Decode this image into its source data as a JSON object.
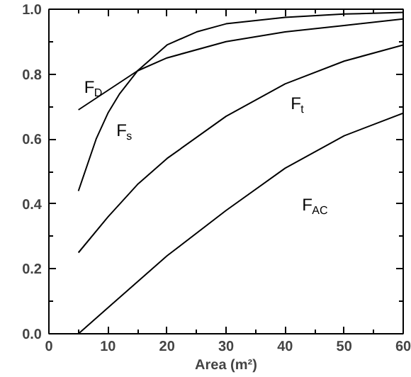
{
  "chart_data": {
    "type": "line",
    "xlabel": "Area (m²)",
    "series": [
      {
        "name": "F$_{D}$",
        "color": "#000000",
        "x": [
          5,
          10,
          15,
          20,
          30,
          40,
          50,
          60
        ],
        "values": [
          0.69,
          0.75,
          0.81,
          0.85,
          0.9,
          0.93,
          0.95,
          0.97
        ]
      },
      {
        "name": "F$_{s}$",
        "color": "#000000",
        "x": [
          5,
          8,
          10,
          12,
          15,
          20,
          25,
          30,
          40,
          50,
          60
        ],
        "values": [
          0.44,
          0.6,
          0.68,
          0.74,
          0.81,
          0.89,
          0.93,
          0.955,
          0.975,
          0.985,
          0.99
        ]
      },
      {
        "name": "F$_{t}$",
        "color": "#000000",
        "x": [
          5,
          10,
          15,
          20,
          30,
          40,
          50,
          60
        ],
        "values": [
          0.25,
          0.36,
          0.46,
          0.54,
          0.67,
          0.77,
          0.84,
          0.89
        ]
      },
      {
        "name": "F$_{AC}$",
        "color": "#000000",
        "x": [
          5,
          10,
          20,
          30,
          40,
          50,
          60
        ],
        "values": [
          0.0,
          0.08,
          0.24,
          0.38,
          0.51,
          0.61,
          0.68
        ]
      }
    ],
    "xlim": [
      0,
      60
    ],
    "ylim": [
      0,
      1
    ],
    "xticks": [
      0,
      {
        "value": 5,
        "label": null
      },
      10,
      {
        "value": 15,
        "label": null
      },
      20,
      {
        "value": 25,
        "label": null
      },
      30,
      {
        "value": 35,
        "label": null
      },
      40,
      {
        "value": 45,
        "label": null
      },
      50,
      {
        "value": 55,
        "label": null
      },
      60
    ],
    "yticks": [
      {
        "value": 0,
        "label": "0.0"
      },
      {
        "value": 0.1,
        "label": null
      },
      {
        "value": 0.2,
        "label": "0.2"
      },
      {
        "value": 0.3,
        "label": null
      },
      {
        "value": 0.4,
        "label": "0.4"
      },
      {
        "value": 0.5,
        "label": null
      },
      {
        "value": 0.6,
        "label": "0.6"
      },
      {
        "value": 0.7,
        "label": null
      },
      {
        "value": 0.8,
        "label": "0.8"
      },
      {
        "value": 0.9,
        "label": null
      },
      {
        "value": 1.0,
        "label": "1.0"
      }
    ],
    "grid": false,
    "marker": "none",
    "line_style": "solid"
  }
}
